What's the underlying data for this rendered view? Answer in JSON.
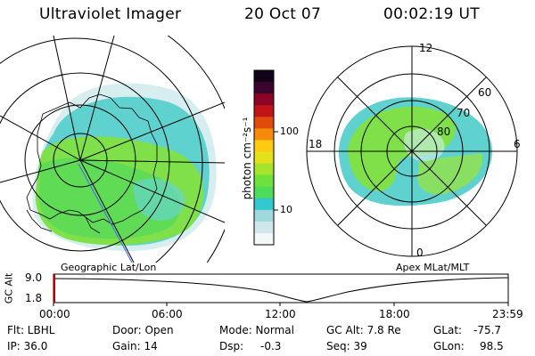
{
  "header": {
    "title": "Ultraviolet Imager",
    "date": "20 Oct 07",
    "time": "00:02:19 UT"
  },
  "panels": {
    "left_label": "Geographic Lat/Lon",
    "right_label": "Apex MLat/MLT"
  },
  "colorbar": {
    "label": "photon cm⁻²s⁻¹",
    "ticks": [
      "100",
      "10"
    ],
    "colors": [
      "#f2f7f7",
      "#cfe7ea",
      "#9fd9dd",
      "#33c8d0",
      "#4cdc5a",
      "#6ee13c",
      "#a6e32c",
      "#e5e01c",
      "#fccb12",
      "#f58a0c",
      "#e04a0a",
      "#c01418",
      "#8a0624",
      "#3a0630",
      "#120318"
    ]
  },
  "polar": {
    "mlt_labels": [
      "12",
      "18",
      "6",
      "0"
    ],
    "mlat_labels": [
      "60",
      "70",
      "80"
    ]
  },
  "altitude_plot": {
    "ylabel": "GC Alt",
    "yticks": [
      "9.0",
      "1.8"
    ],
    "xticks": [
      "00:00",
      "06:00",
      "12:00",
      "18:00",
      "23:59"
    ]
  },
  "info": {
    "row1": {
      "filter": "Flt: LBHL",
      "door": "Door: Open",
      "mode": "Mode: Normal",
      "gc_alt": "GC Alt: 7.8 Re",
      "glat_label": "GLat:",
      "glat_value": "-75.7"
    },
    "row2": {
      "ip": "IP: 36.0",
      "gain": "Gain: 14",
      "dsp_label": "Dsp:",
      "dsp_value": "-0.3",
      "seq": "Seq: 39",
      "glon_label": "GLon:",
      "glon_value": "98.5"
    }
  }
}
